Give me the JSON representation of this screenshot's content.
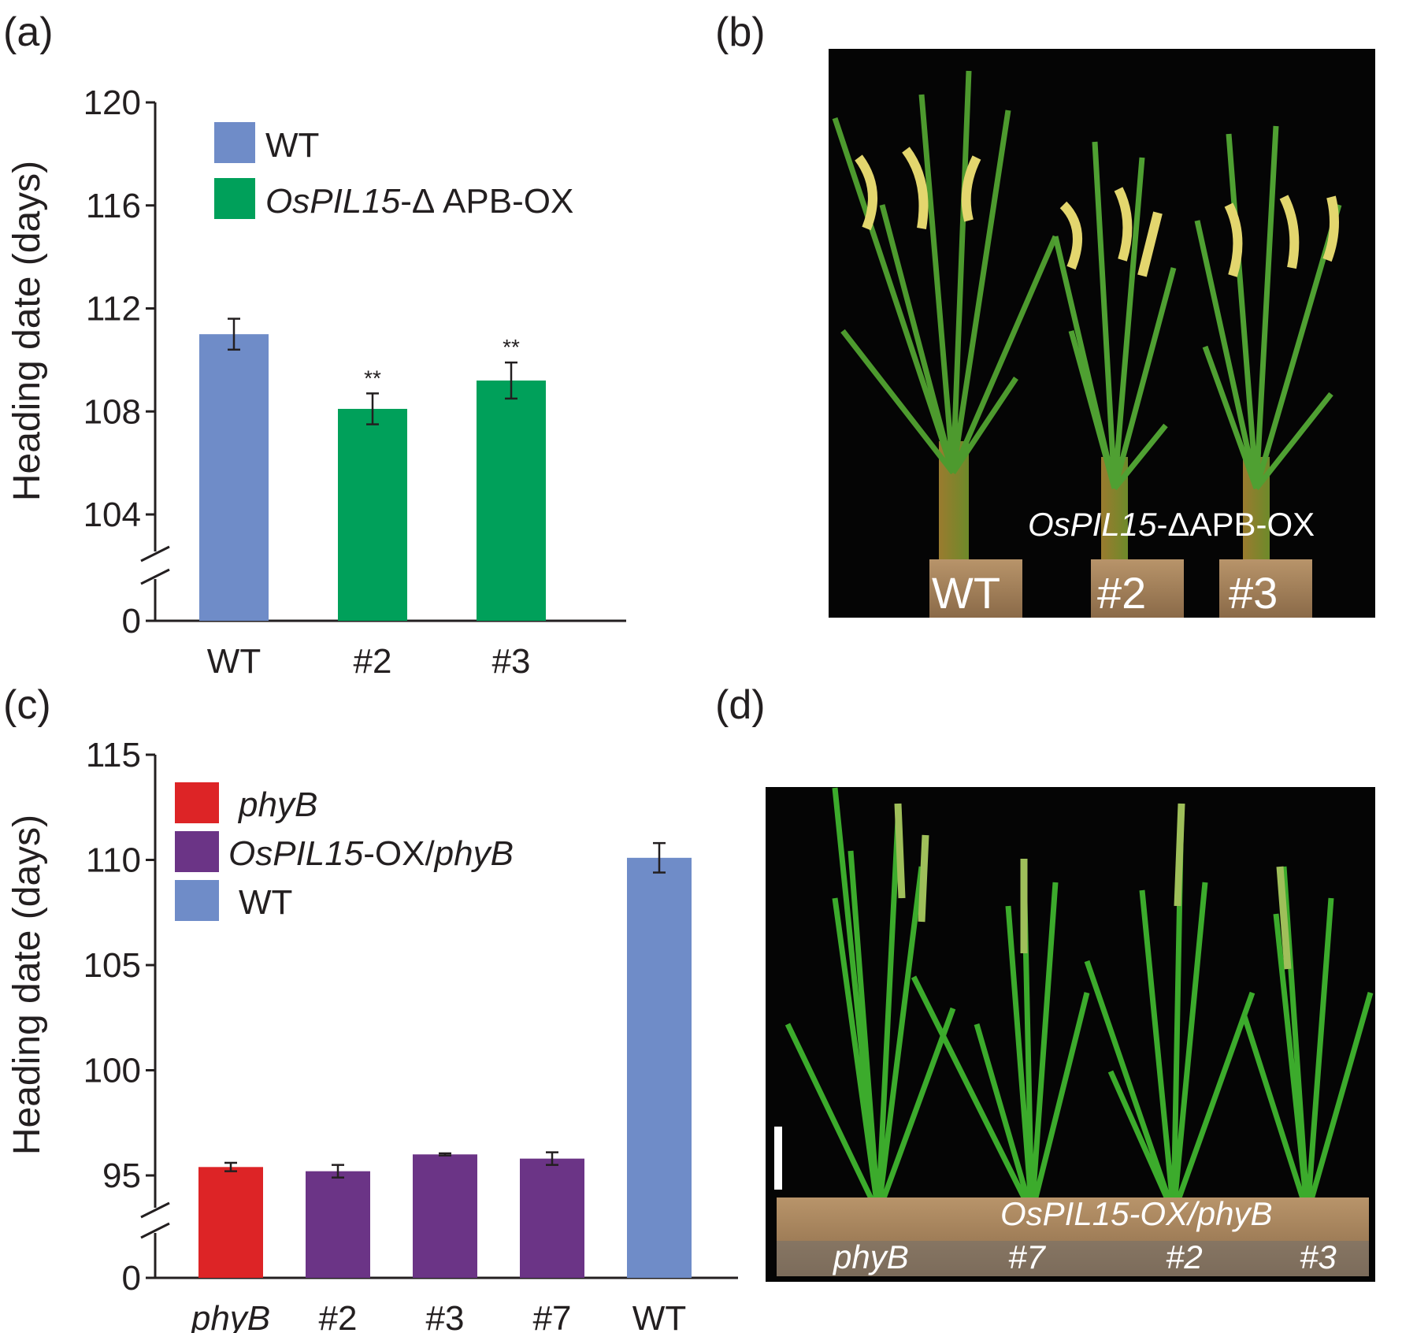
{
  "panels": {
    "a": "(a)",
    "b": "(b)",
    "c": "(c)",
    "d": "(d)"
  },
  "colors": {
    "wt": "#6f8cc8",
    "ox": "#00a05a",
    "phyB": "#dd2426",
    "ox_phyB": "#6b3486",
    "axis": "#231f20",
    "photo_bg": "#050505"
  },
  "chart_data": [
    {
      "type": "bar",
      "title": "",
      "xlabel": "",
      "ylabel": "Heading date (days)",
      "ylim": [
        104,
        120
      ],
      "axis_break": true,
      "ytick_labels": [
        "0",
        "104",
        "108",
        "112",
        "116",
        "120"
      ],
      "categories": [
        "WT",
        "#2",
        "#3"
      ],
      "values": [
        111.0,
        108.1,
        109.2
      ],
      "errors": [
        0.6,
        0.6,
        0.7
      ],
      "significance": [
        "",
        "**",
        "**"
      ],
      "bar_series": [
        "wt",
        "ox",
        "ox"
      ],
      "legend": [
        {
          "key": "wt",
          "label": "WT",
          "italic_part": "",
          "rest": "WT"
        },
        {
          "key": "ox",
          "label": "OsPIL15-ΔAPB-OX",
          "italic_part": "OsPIL15",
          "rest": "-Δ APB-OX"
        }
      ]
    },
    {
      "type": "bar",
      "title": "",
      "xlabel": "",
      "ylabel": "Heading date (days)",
      "ylim": [
        95,
        115
      ],
      "axis_break": true,
      "ytick_labels": [
        "0",
        "95",
        "100",
        "105",
        "110",
        "115"
      ],
      "categories": [
        "phyB",
        "#2",
        "#3",
        "#7",
        "WT"
      ],
      "category_italic": [
        true,
        false,
        false,
        false,
        false
      ],
      "values": [
        95.4,
        95.2,
        96.0,
        95.8,
        110.1
      ],
      "errors": [
        0.2,
        0.3,
        0.05,
        0.3,
        0.7
      ],
      "bar_series": [
        "phyB",
        "ox_phyB",
        "ox_phyB",
        "ox_phyB",
        "wt"
      ],
      "legend": [
        {
          "key": "phyB",
          "label": "phyB"
        },
        {
          "key": "ox_phyB",
          "label": "OsPIL15-OX/phyB"
        },
        {
          "key": "wt",
          "label": "WT"
        }
      ]
    }
  ],
  "photos": {
    "b": {
      "construct_label": "OsPIL15-ΔAPB-OX",
      "construct_italic": "OsPIL15",
      "construct_rest": "-ΔAPB-OX",
      "pot_labels": [
        "WT",
        "#2",
        "#3"
      ]
    },
    "d": {
      "construct_label": "OsPIL15-OX/phyB",
      "pot_labels": [
        "phyB",
        "#7",
        "#2",
        "#3"
      ]
    }
  }
}
